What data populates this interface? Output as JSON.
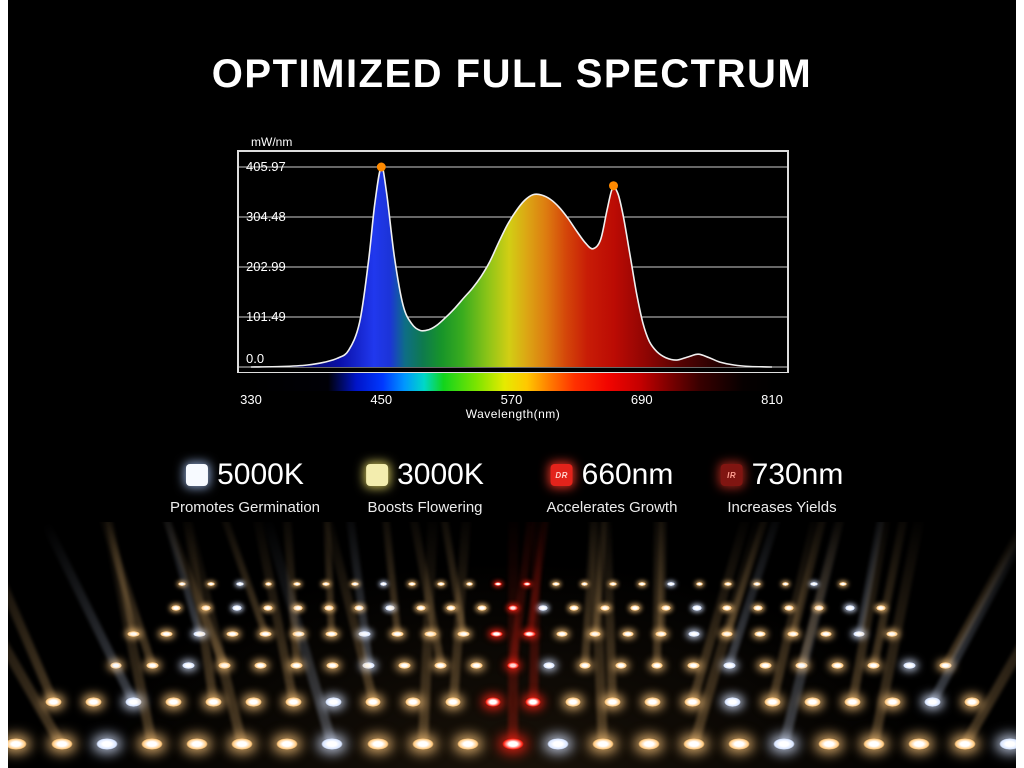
{
  "page": {
    "title": "OPTIMIZED FULL SPECTRUM",
    "bg": "#000000"
  },
  "chart_data": {
    "type": "area",
    "title": "",
    "ylabel": "mW/nm",
    "xlabel": "Wavelength(nm)",
    "xlim": [
      330,
      810
    ],
    "ylim": [
      0,
      436
    ],
    "grid": "horizontal",
    "legend_position": "none",
    "x_ticks": [
      330,
      450,
      570,
      690,
      810
    ],
    "y_ticks": [
      "405.97",
      "304.48",
      "202.99",
      "101.49",
      "0.0"
    ],
    "line_color": "#f0f0f0",
    "marker_color": "#ff8a00",
    "markers": [
      {
        "x": 450,
        "y": 405.97
      },
      {
        "x": 664,
        "y": 368
      }
    ],
    "points": [
      [
        330,
        0
      ],
      [
        358,
        1
      ],
      [
        382,
        4
      ],
      [
        398,
        10
      ],
      [
        410,
        18
      ],
      [
        420,
        34
      ],
      [
        430,
        90
      ],
      [
        438,
        210
      ],
      [
        444,
        330
      ],
      [
        450,
        406
      ],
      [
        455,
        352
      ],
      [
        462,
        225
      ],
      [
        470,
        126
      ],
      [
        478,
        88
      ],
      [
        486,
        74
      ],
      [
        494,
        76
      ],
      [
        502,
        86
      ],
      [
        510,
        102
      ],
      [
        518,
        120
      ],
      [
        526,
        140
      ],
      [
        534,
        160
      ],
      [
        542,
        184
      ],
      [
        550,
        214
      ],
      [
        558,
        252
      ],
      [
        566,
        288
      ],
      [
        574,
        316
      ],
      [
        582,
        338
      ],
      [
        590,
        350
      ],
      [
        598,
        349
      ],
      [
        606,
        340
      ],
      [
        614,
        324
      ],
      [
        622,
        302
      ],
      [
        630,
        276
      ],
      [
        638,
        252
      ],
      [
        645,
        240
      ],
      [
        652,
        258
      ],
      [
        658,
        318
      ],
      [
        663,
        362
      ],
      [
        668,
        352
      ],
      [
        673,
        306
      ],
      [
        679,
        230
      ],
      [
        685,
        152
      ],
      [
        691,
        90
      ],
      [
        697,
        52
      ],
      [
        704,
        31
      ],
      [
        712,
        19
      ],
      [
        722,
        14
      ],
      [
        732,
        20
      ],
      [
        742,
        26
      ],
      [
        752,
        19
      ],
      [
        762,
        10
      ],
      [
        775,
        4
      ],
      [
        790,
        1
      ],
      [
        810,
        0
      ]
    ],
    "fill_gradient": [
      {
        "at": 330,
        "color": "#04020a"
      },
      {
        "at": 412,
        "color": "#0a10a8"
      },
      {
        "at": 443,
        "color": "#2038ee"
      },
      {
        "at": 458,
        "color": "#1c34d8"
      },
      {
        "at": 472,
        "color": "#0e6e86"
      },
      {
        "at": 488,
        "color": "#0e7a4e"
      },
      {
        "at": 505,
        "color": "#17942a"
      },
      {
        "at": 525,
        "color": "#3aac1e"
      },
      {
        "at": 548,
        "color": "#8cc418"
      },
      {
        "at": 568,
        "color": "#d2ce14"
      },
      {
        "at": 585,
        "color": "#dca414"
      },
      {
        "at": 602,
        "color": "#dd7b10"
      },
      {
        "at": 620,
        "color": "#d4470a"
      },
      {
        "at": 640,
        "color": "#c81c06"
      },
      {
        "at": 665,
        "color": "#bb0b04"
      },
      {
        "at": 695,
        "color": "#8d0503"
      },
      {
        "at": 725,
        "color": "#560202"
      },
      {
        "at": 760,
        "color": "#250101"
      },
      {
        "at": 810,
        "color": "#0a0000"
      }
    ],
    "colorbar_stops": [
      {
        "at": 330,
        "color": "#000000"
      },
      {
        "at": 402,
        "color": "#000006"
      },
      {
        "at": 428,
        "color": "#0014c8"
      },
      {
        "at": 452,
        "color": "#0038ff"
      },
      {
        "at": 472,
        "color": "#0096ff"
      },
      {
        "at": 490,
        "color": "#00d8c8"
      },
      {
        "at": 508,
        "color": "#12d41c"
      },
      {
        "at": 538,
        "color": "#7ce400"
      },
      {
        "at": 564,
        "color": "#e6ea00"
      },
      {
        "at": 584,
        "color": "#ffc800"
      },
      {
        "at": 604,
        "color": "#ff7e00"
      },
      {
        "at": 628,
        "color": "#ff3000"
      },
      {
        "at": 658,
        "color": "#f20400"
      },
      {
        "at": 688,
        "color": "#c40000"
      },
      {
        "at": 712,
        "color": "#820000"
      },
      {
        "at": 742,
        "color": "#380000"
      },
      {
        "at": 782,
        "color": "#060000"
      },
      {
        "at": 810,
        "color": "#000000"
      }
    ]
  },
  "legend": {
    "items": [
      {
        "label": "5000K",
        "sublabel": "Promotes Germination",
        "swatch_color": "#f7faff",
        "glow_color": "#9db8e8",
        "swatch_text": "",
        "swatch_text_color": "#ffffff"
      },
      {
        "label": "3000K",
        "sublabel": "Boosts Flowering",
        "swatch_color": "#f3edae",
        "glow_color": "#e8dc66",
        "swatch_text": "",
        "swatch_text_color": "#ffffff"
      },
      {
        "label": "660nm",
        "sublabel": "Accelerates Growth",
        "swatch_color": "#e3231b",
        "glow_color": "#ff3a28",
        "swatch_text": "DR",
        "swatch_text_color": "#ffd2cc"
      },
      {
        "label": "730nm",
        "sublabel": "Increases Yields",
        "swatch_color": "#801511",
        "glow_color": "#b62a1e",
        "swatch_text": "IR",
        "swatch_text_color": "#ff9d8f"
      }
    ]
  },
  "led_panel": {
    "description": "Close-up of LED grow light board with crossing light beams",
    "colors": {
      "warm": "#ffc87d",
      "cool": "#d7e4ff",
      "red": "#ff2415"
    }
  }
}
